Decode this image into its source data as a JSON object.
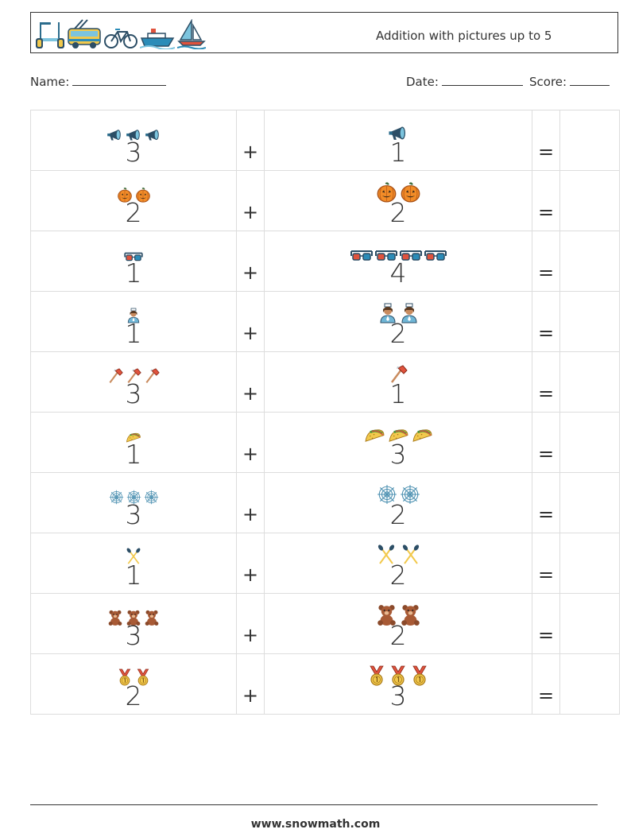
{
  "header": {
    "title": "Addition with pictures up to 5",
    "icons": [
      "scooter-icon",
      "trolleybus-icon",
      "bicycle-icon",
      "ship-icon",
      "sailboat-icon"
    ]
  },
  "form": {
    "name_label": "Name:",
    "date_label": "Date:",
    "score_label": "Score:"
  },
  "problems": [
    {
      "left": {
        "count": 3,
        "number": "3",
        "icon": "megaphone-icon"
      },
      "right": {
        "count": 1,
        "number": "1",
        "icon": "megaphone-icon"
      },
      "plus": "+",
      "equals": "="
    },
    {
      "left": {
        "count": 2,
        "number": "2",
        "icon": "pumpkin-icon"
      },
      "right": {
        "count": 2,
        "number": "2",
        "icon": "pumpkin-icon"
      },
      "plus": "+",
      "equals": "="
    },
    {
      "left": {
        "count": 1,
        "number": "1",
        "icon": "3d-glasses-icon"
      },
      "right": {
        "count": 4,
        "number": "4",
        "icon": "3d-glasses-icon"
      },
      "plus": "+",
      "equals": "="
    },
    {
      "left": {
        "count": 1,
        "number": "1",
        "icon": "nurse-icon"
      },
      "right": {
        "count": 2,
        "number": "2",
        "icon": "nurse-icon"
      },
      "plus": "+",
      "equals": "="
    },
    {
      "left": {
        "count": 3,
        "number": "3",
        "icon": "axe-icon"
      },
      "right": {
        "count": 1,
        "number": "1",
        "icon": "axe-icon"
      },
      "plus": "+",
      "equals": "="
    },
    {
      "left": {
        "count": 1,
        "number": "1",
        "icon": "taco-icon"
      },
      "right": {
        "count": 3,
        "number": "3",
        "icon": "taco-icon"
      },
      "plus": "+",
      "equals": "="
    },
    {
      "left": {
        "count": 3,
        "number": "3",
        "icon": "spiderweb-icon"
      },
      "right": {
        "count": 2,
        "number": "2",
        "icon": "spiderweb-icon"
      },
      "plus": "+",
      "equals": "="
    },
    {
      "left": {
        "count": 1,
        "number": "1",
        "icon": "paddles-icon"
      },
      "right": {
        "count": 2,
        "number": "2",
        "icon": "paddles-icon"
      },
      "plus": "+",
      "equals": "="
    },
    {
      "left": {
        "count": 3,
        "number": "3",
        "icon": "teddy-bear-icon"
      },
      "right": {
        "count": 2,
        "number": "2",
        "icon": "teddy-bear-icon"
      },
      "plus": "+",
      "equals": "="
    },
    {
      "left": {
        "count": 2,
        "number": "2",
        "icon": "medal-icon"
      },
      "right": {
        "count": 3,
        "number": "3",
        "icon": "medal-icon"
      },
      "plus": "+",
      "equals": "="
    }
  ],
  "footer": {
    "url": "www.snowmath.com"
  }
}
